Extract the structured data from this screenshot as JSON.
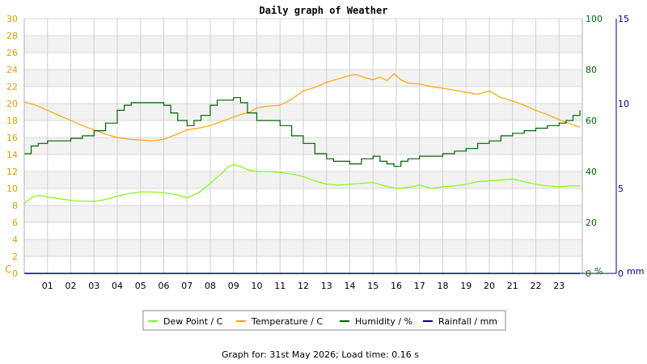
{
  "chart_data": {
    "type": "line",
    "title": "Daily graph of Weather",
    "footer": "Graph for: 31st May 2026; Load time: 0.16 s",
    "x_ticks": [
      "01",
      "02",
      "03",
      "04",
      "05",
      "06",
      "07",
      "08",
      "09",
      "10",
      "11",
      "12",
      "13",
      "14",
      "15",
      "16",
      "17",
      "18",
      "19",
      "20",
      "21",
      "22",
      "23"
    ],
    "xlim": [
      0,
      24
    ],
    "y_left": {
      "unit": "C",
      "ticks": [
        0,
        2,
        4,
        6,
        8,
        10,
        12,
        14,
        16,
        18,
        20,
        22,
        24,
        26,
        28,
        30
      ],
      "ylim": [
        0,
        30
      ],
      "color": "#e69a00"
    },
    "y_middle": {
      "unit": "%",
      "ticks": [
        0,
        20,
        40,
        60,
        80,
        100
      ],
      "ylim": [
        0,
        100
      ],
      "color": "#006400"
    },
    "y_right": {
      "unit": "mm",
      "ticks": [
        0,
        5,
        10,
        15
      ],
      "ylim": [
        0,
        15
      ],
      "color": "#00008b"
    },
    "grid": true,
    "legend_position": "bottom-center",
    "series": [
      {
        "name": "Dew Point / C",
        "axis": "left",
        "color": "#7cfc00",
        "x": [
          0,
          0.3,
          0.6,
          1,
          1.5,
          2,
          2.5,
          3,
          3.5,
          4,
          4.5,
          5,
          5.5,
          6,
          6.5,
          7,
          7.5,
          8,
          8.5,
          8.8,
          9,
          9.3,
          9.6,
          10,
          10.5,
          11,
          11.5,
          12,
          12.5,
          13,
          13.5,
          14,
          14.5,
          15,
          15.5,
          16,
          16.5,
          17,
          17.5,
          18,
          18.5,
          19,
          19.5,
          20,
          20.5,
          21,
          21.5,
          22,
          22.5,
          23,
          23.5,
          23.9
        ],
        "y": [
          8.2,
          8.9,
          9.2,
          9.0,
          8.8,
          8.6,
          8.5,
          8.5,
          8.7,
          9.1,
          9.4,
          9.6,
          9.6,
          9.5,
          9.3,
          8.9,
          9.5,
          10.6,
          11.8,
          12.6,
          12.8,
          12.6,
          12.2,
          12.0,
          12.0,
          11.9,
          11.7,
          11.4,
          10.9,
          10.5,
          10.4,
          10.5,
          10.6,
          10.7,
          10.3,
          10.0,
          10.1,
          10.4,
          10.0,
          10.2,
          10.3,
          10.5,
          10.8,
          10.9,
          11.0,
          11.1,
          10.8,
          10.5,
          10.3,
          10.2,
          10.3,
          10.3
        ]
      },
      {
        "name": "Temperature / C",
        "axis": "left",
        "color": "#ffa500",
        "x": [
          0,
          0.5,
          1,
          1.5,
          2,
          2.5,
          3,
          3.5,
          4,
          4.5,
          5,
          5.5,
          6,
          6.5,
          7,
          7.5,
          8,
          8.5,
          9,
          9.3,
          9.7,
          10,
          10.5,
          11,
          11.5,
          12,
          12.5,
          13,
          13.5,
          14,
          14.3,
          14.7,
          15,
          15.3,
          15.6,
          15.9,
          16.2,
          16.5,
          17,
          17.5,
          18,
          18.5,
          19,
          19.5,
          20,
          20.5,
          21,
          21.5,
          22,
          22.5,
          23,
          23.5,
          23.9
        ],
        "y": [
          20.2,
          19.8,
          19.2,
          18.6,
          18.0,
          17.4,
          16.9,
          16.4,
          16.0,
          15.8,
          15.7,
          15.6,
          15.8,
          16.3,
          16.9,
          17.1,
          17.4,
          17.9,
          18.4,
          18.7,
          19.0,
          19.5,
          19.7,
          19.8,
          20.5,
          21.5,
          21.9,
          22.5,
          22.9,
          23.3,
          23.4,
          23.0,
          22.8,
          23.1,
          22.7,
          23.5,
          22.8,
          22.4,
          22.3,
          22.0,
          21.8,
          21.6,
          21.3,
          21.1,
          21.5,
          20.7,
          20.3,
          19.8,
          19.2,
          18.7,
          18.1,
          17.6,
          17.2
        ]
      },
      {
        "name": "Humidity / %",
        "axis": "middle",
        "color": "#006400",
        "x": [
          0,
          0.3,
          0.6,
          1,
          1.5,
          2,
          2.5,
          3,
          3.5,
          4,
          4.3,
          4.6,
          5,
          5.5,
          6,
          6.3,
          6.6,
          7,
          7.3,
          7.6,
          8,
          8.3,
          8.6,
          9,
          9.3,
          9.6,
          10,
          10.5,
          11,
          11.5,
          12,
          12.5,
          13,
          13.3,
          13.6,
          14,
          14.5,
          15,
          15.3,
          15.6,
          15.9,
          16.2,
          16.5,
          17,
          17.5,
          18,
          18.5,
          19,
          19.5,
          20,
          20.5,
          21,
          21.5,
          22,
          22.5,
          23,
          23.3,
          23.6,
          23.9
        ],
        "y": [
          47,
          50,
          51,
          52,
          52,
          53,
          54,
          56,
          59,
          64,
          66,
          67,
          67,
          67,
          66,
          63,
          60,
          58,
          60,
          62,
          66,
          68,
          68,
          69,
          67,
          63,
          60,
          60,
          58,
          54,
          51,
          47,
          45,
          44,
          44,
          43,
          45,
          46,
          44,
          43,
          42,
          44,
          45,
          46,
          46,
          47,
          48,
          49,
          51,
          52,
          54,
          55,
          56,
          57,
          58,
          59,
          60,
          62,
          64
        ]
      },
      {
        "name": "Rainfall / mm",
        "axis": "right",
        "color": "#00008b",
        "x": [
          0,
          23.9
        ],
        "y": [
          0,
          0
        ]
      }
    ]
  }
}
